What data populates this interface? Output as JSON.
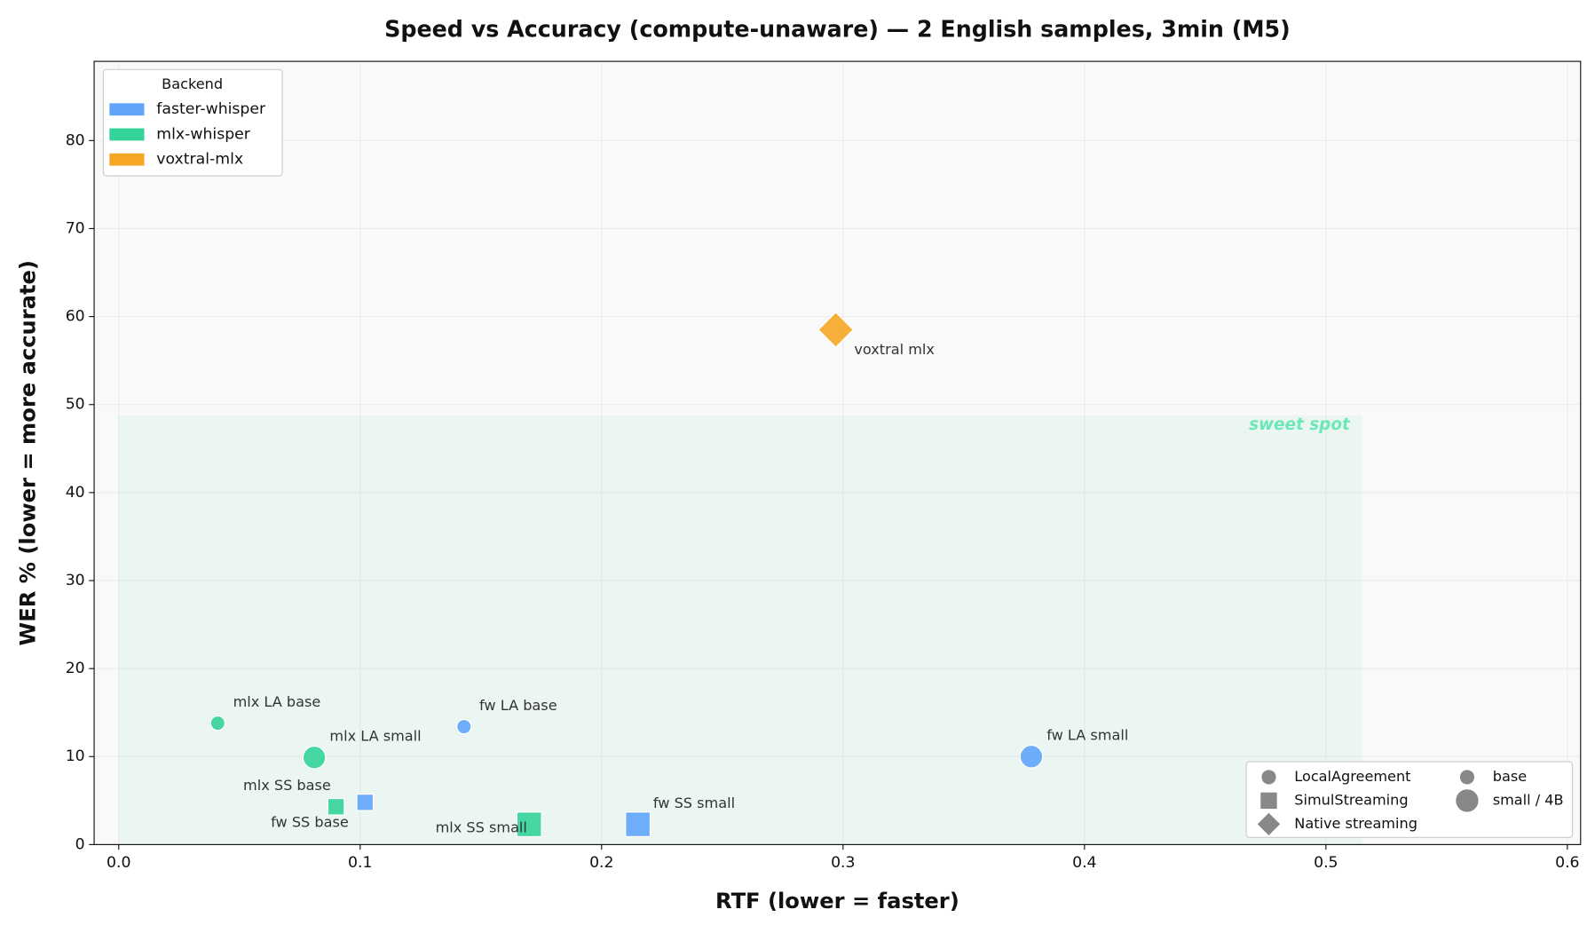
{
  "chart_data": {
    "type": "scatter",
    "title": "Speed vs Accuracy (compute-unaware) — 2 English samples, 3min (M5)",
    "x_label": "RTF (lower = faster)",
    "y_label": "WER % (lower = more accurate)",
    "xlim": [
      -0.0102,
      0.6055
    ],
    "ylim": [
      0,
      89
    ],
    "xticks": [
      {
        "value": 0,
        "label": "0.0"
      },
      0.1,
      0.2,
      0.3,
      0.4,
      0.5,
      0.6
    ],
    "yticks": [
      0,
      10,
      20,
      30,
      40,
      50,
      60,
      70,
      80
    ],
    "grid": true,
    "legend_title": "Backend",
    "legend": "upper left",
    "sweet_spot": {
      "label": "sweet spot",
      "x": [
        0,
        0.515
      ],
      "y": [
        0,
        48.8
      ]
    },
    "marker_legend": {
      "methods": [
        "LocalAgreement",
        "SimulStreaming",
        "Native streaming"
      ],
      "sizes": [
        "base",
        "small / 4B"
      ]
    },
    "series": [
      {
        "name": "faster-whisper",
        "color": "#60a5fa",
        "x": [
          0.143,
          0.102,
          0.215,
          0.378
        ],
        "y": [
          13.4,
          4.8,
          2.3,
          10.0
        ],
        "labels": [
          "fw LA base",
          "fw SS base",
          "fw SS small",
          "fw LA small"
        ],
        "methods": [
          "LocalAgreement",
          "SimulStreaming",
          "SimulStreaming",
          "LocalAgreement"
        ],
        "sizes": [
          "base",
          "base",
          "small / 4B",
          "small / 4B"
        ]
      },
      {
        "name": "mlx-whisper",
        "color": "#34d399",
        "x": [
          0.041,
          0.081,
          0.09,
          0.17
        ],
        "y": [
          13.8,
          9.9,
          4.3,
          2.3
        ],
        "labels": [
          "mlx LA base",
          "mlx LA small",
          "mlx SS base",
          "mlx SS small"
        ],
        "methods": [
          "LocalAgreement",
          "LocalAgreement",
          "SimulStreaming",
          "SimulStreaming"
        ],
        "sizes": [
          "base",
          "small / 4B",
          "base",
          "small / 4B"
        ]
      },
      {
        "name": "voxtral-mlx",
        "color": "#f5a623",
        "x": [
          0.297
        ],
        "y": [
          58.5
        ],
        "labels": [
          "voxtral mlx"
        ],
        "methods": [
          "Native streaming"
        ],
        "sizes": [
          "small / 4B"
        ]
      }
    ]
  }
}
